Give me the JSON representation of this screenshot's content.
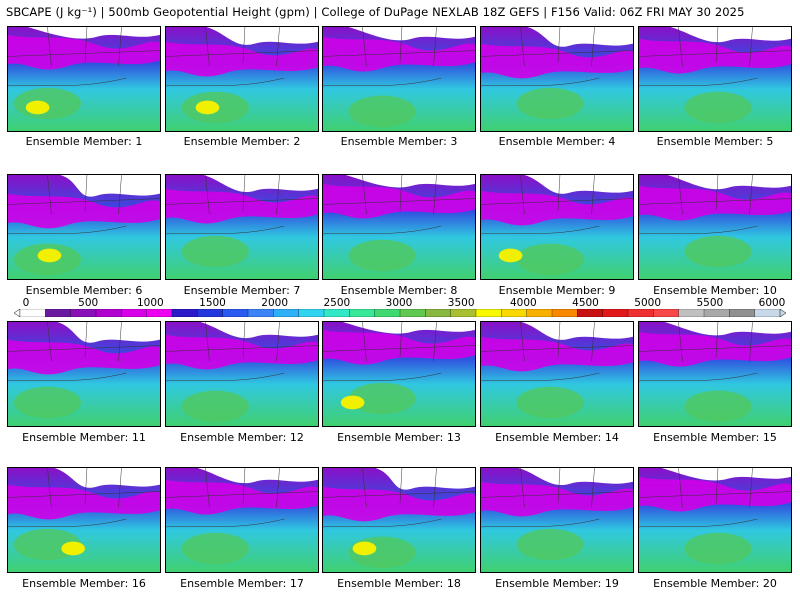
{
  "title": "SBCAPE (J kg⁻¹) | 500mb Geopotential Height (gpm) | College of DuPage NEXLAB 18Z GEFS | F156 Valid: 06Z FRI MAY 30 2025",
  "member_prefix": "Ensemble Member: ",
  "members": [
    {
      "label": "Ensemble Member: 1"
    },
    {
      "label": "Ensemble Member: 2"
    },
    {
      "label": "Ensemble Member: 3"
    },
    {
      "label": "Ensemble Member: 4"
    },
    {
      "label": "Ensemble Member: 5"
    },
    {
      "label": "Ensemble Member: 6"
    },
    {
      "label": "Ensemble Member: 7"
    },
    {
      "label": "Ensemble Member: 8"
    },
    {
      "label": "Ensemble Member: 9"
    },
    {
      "label": "Ensemble Member: 10"
    },
    {
      "label": "Ensemble Member: 11"
    },
    {
      "label": "Ensemble Member: 12"
    },
    {
      "label": "Ensemble Member: 13"
    },
    {
      "label": "Ensemble Member: 14"
    },
    {
      "label": "Ensemble Member: 15"
    },
    {
      "label": "Ensemble Member: 16"
    },
    {
      "label": "Ensemble Member: 17"
    },
    {
      "label": "Ensemble Member: 18"
    },
    {
      "label": "Ensemble Member: 19"
    },
    {
      "label": "Ensemble Member: 20"
    }
  ],
  "colorbar": {
    "tick_labels": [
      "0",
      "500",
      "1000",
      "1500",
      "2000",
      "2500",
      "3000",
      "3500",
      "4000",
      "4500",
      "5000",
      "5500",
      "6000"
    ],
    "colors": [
      "#ffffff",
      "#6a1aa0",
      "#8a10b8",
      "#b000d0",
      "#d800e8",
      "#ee00f0",
      "#2a1ac8",
      "#2238dc",
      "#2a5af0",
      "#3a84f8",
      "#2eb0f8",
      "#30d4f0",
      "#30e8c8",
      "#38e898",
      "#40d870",
      "#60c850",
      "#88b840",
      "#a8c030",
      "#f8f800",
      "#f8d800",
      "#f8b000",
      "#f88800",
      "#c81010",
      "#e01818",
      "#f03030",
      "#f84848",
      "#c0c0c0",
      "#a8a8a8",
      "#909090",
      "#c8d8e8"
    ]
  }
}
